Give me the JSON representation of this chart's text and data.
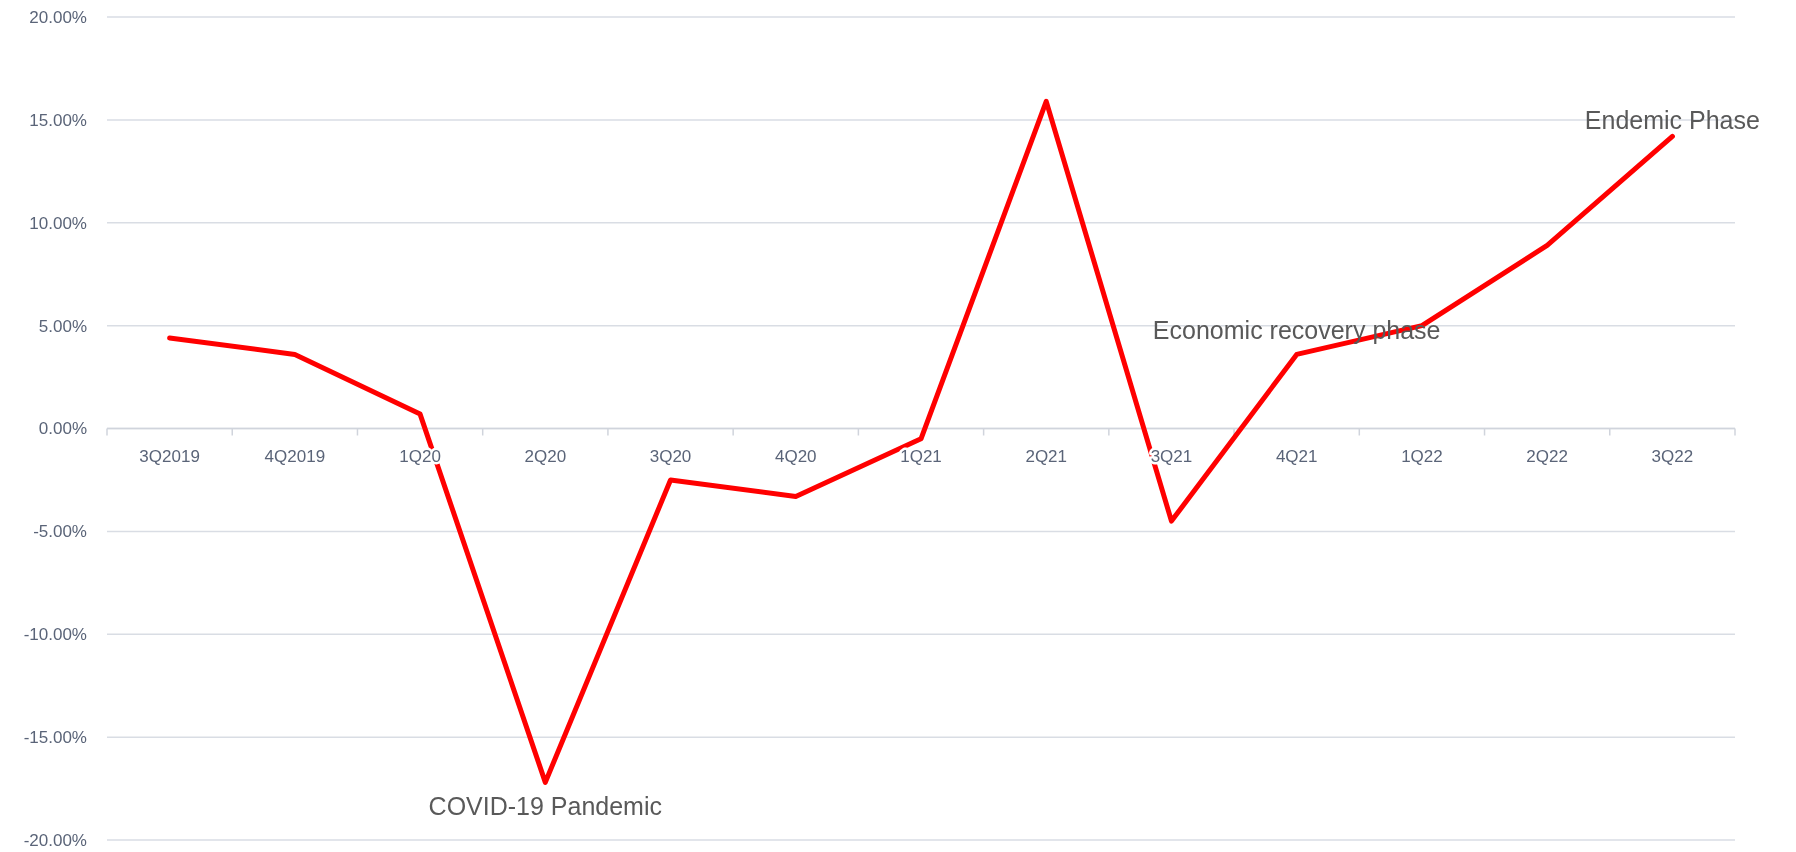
{
  "chart_data": {
    "type": "line",
    "categories": [
      "3Q2019",
      "4Q2019",
      "1Q20",
      "2Q20",
      "3Q20",
      "4Q20",
      "1Q21",
      "2Q21",
      "3Q21",
      "4Q21",
      "1Q22",
      "2Q22",
      "3Q22"
    ],
    "series": [
      {
        "color": "#ff0000",
        "values": [
          4.4,
          3.6,
          0.7,
          -17.2,
          -2.5,
          -3.3,
          -0.5,
          15.9,
          -4.5,
          3.6,
          5.0,
          8.9,
          14.2
        ]
      }
    ],
    "ylim": [
      -20,
      20
    ],
    "yticks": [
      {
        "value": -20,
        "label": "-20.00%"
      },
      {
        "value": -15,
        "label": "-15.00%"
      },
      {
        "value": -10,
        "label": "-10.00%"
      },
      {
        "value": -5,
        "label": "-5.00%"
      },
      {
        "value": 0,
        "label": "0.00%"
      },
      {
        "value": 5,
        "label": "5.00%"
      },
      {
        "value": 10,
        "label": "10.00%"
      },
      {
        "value": 15,
        "label": "15.00%"
      },
      {
        "value": 20,
        "label": "20.00%"
      }
    ],
    "grid": "y",
    "marker": "none",
    "line_style": "solid",
    "annotations": [
      {
        "text": "COVID-19 Pandemic",
        "x": "2Q20",
        "y": -17.2
      },
      {
        "text": "Economic recovery phase",
        "x": "4Q21",
        "y": 3.6
      },
      {
        "text": "Endemic Phase",
        "x": "3Q22",
        "y": 14.2
      }
    ]
  }
}
